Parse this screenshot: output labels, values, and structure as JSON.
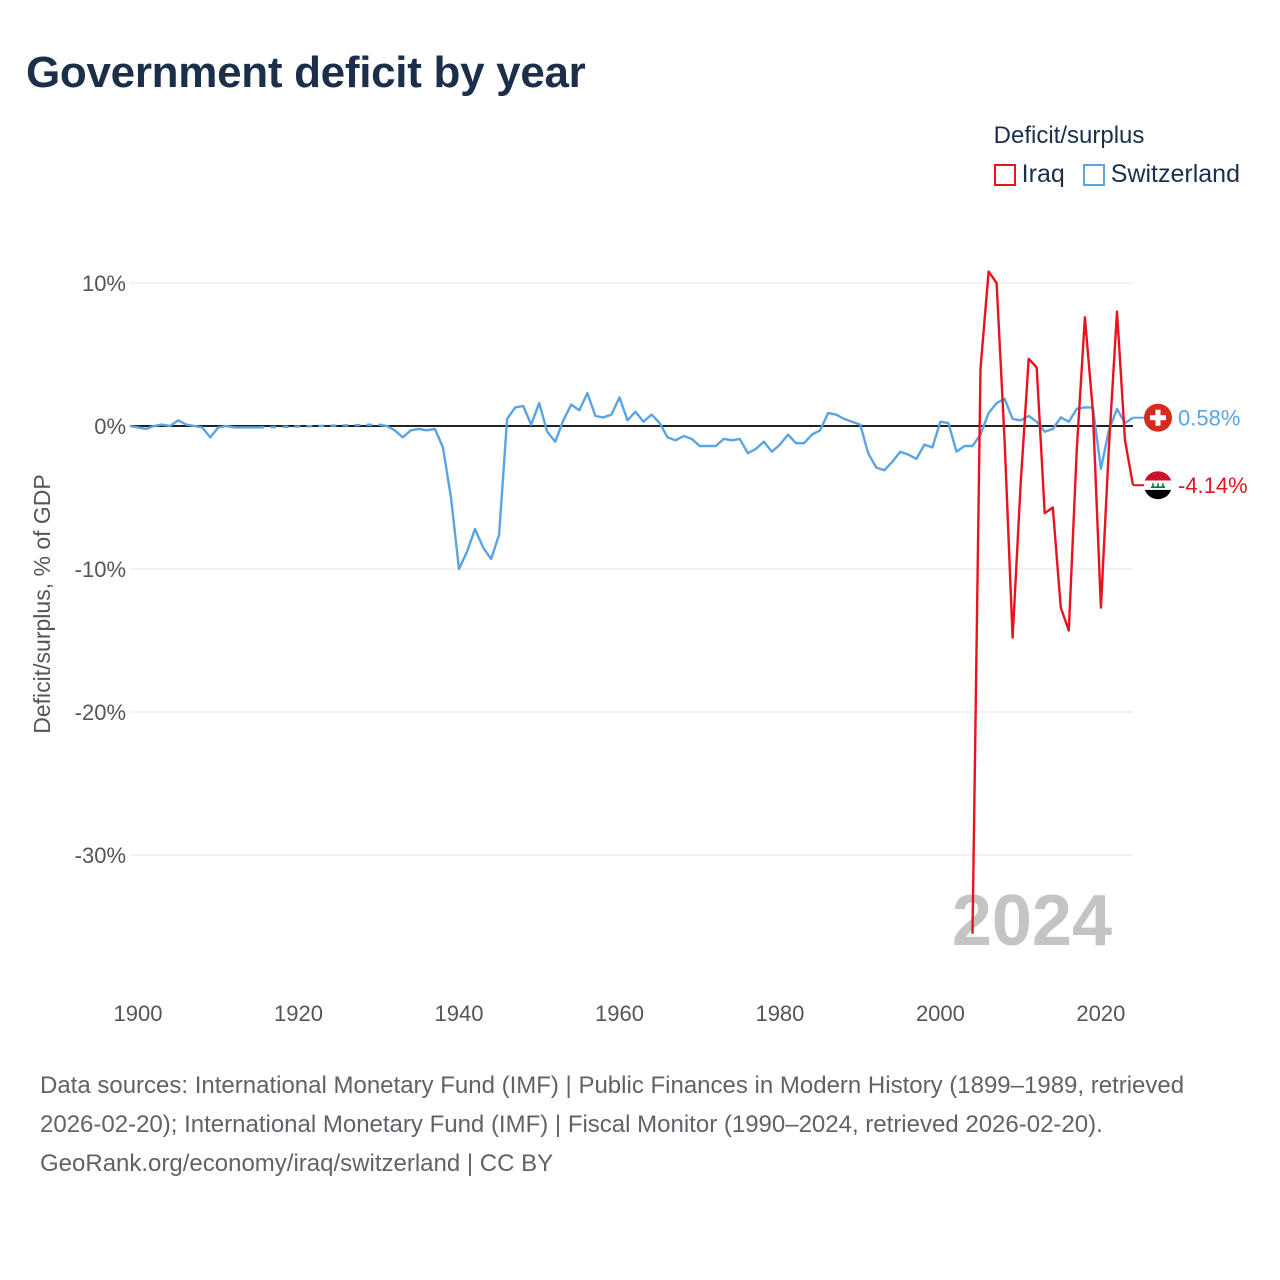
{
  "title": "Government deficit by year",
  "legend": {
    "title": "Deficit/surplus",
    "items": [
      {
        "label": "Iraq",
        "color": "#e8131e"
      },
      {
        "label": "Switzerland",
        "color": "#5ba4e3"
      }
    ]
  },
  "year_watermark": "2024",
  "footer": {
    "sources": "Data sources: International Monetary Fund (IMF) | Public Finances in Modern History (1899–1989, retrieved 2026-02-20); International Monetary Fund (IMF) | Fiscal Monitor (1990–2024, retrieved 2026-02-20).",
    "credit": "GeoRank.org/economy/iraq/switzerland | CC BY"
  },
  "chart_data": {
    "type": "line",
    "title": "Government deficit by year",
    "xlabel": "",
    "ylabel": "Deficit/surplus, % of GDP",
    "xlim": [
      1899,
      2024
    ],
    "ylim": [
      -37,
      11
    ],
    "xticks": [
      1900,
      1920,
      1940,
      1960,
      1980,
      2000,
      2020
    ],
    "xtick_labels": [
      "1900",
      "1920",
      "1940",
      "1960",
      "1980",
      "2000",
      "2020"
    ],
    "yticks": [
      10,
      0,
      -10,
      -20,
      -30
    ],
    "ytick_labels": [
      "10%",
      "0%",
      "-10%",
      "-20%",
      "-30%"
    ],
    "zero_line": true,
    "series": [
      {
        "name": "Switzerland",
        "color": "#5ba4e3",
        "end_label": "0.58%",
        "solid_segments": [
          {
            "x": [
              1899,
              1900,
              1901,
              1902,
              1903,
              1904,
              1905,
              1906,
              1907,
              1908,
              1909,
              1910,
              1911,
              1912,
              1913,
              1914,
              1915
            ],
            "y": [
              0.0,
              -0.1,
              -0.2,
              0.0,
              0.1,
              0.0,
              0.4,
              0.1,
              0.0,
              -0.1,
              -0.8,
              -0.1,
              0.0,
              -0.1,
              -0.1,
              -0.1,
              -0.1
            ]
          },
          {
            "x": [
              1930,
              1931,
              1932,
              1933,
              1934,
              1935,
              1936,
              1937,
              1938,
              1939,
              1940,
              1941,
              1942,
              1943,
              1944,
              1945,
              1946,
              1947,
              1948,
              1949,
              1950,
              1951,
              1952,
              1953,
              1954,
              1955,
              1956,
              1957,
              1958,
              1959,
              1960,
              1961,
              1962,
              1963,
              1964,
              1965,
              1966,
              1967,
              1968,
              1969,
              1970,
              1971,
              1972,
              1973,
              1974,
              1975,
              1976,
              1977,
              1978,
              1979,
              1980,
              1981,
              1982,
              1983,
              1984,
              1985,
              1986,
              1987,
              1988,
              1989,
              1990,
              1991,
              1992,
              1993,
              1994,
              1995,
              1996,
              1997,
              1998,
              1999,
              2000,
              2001,
              2002,
              2003,
              2004,
              2005,
              2006,
              2007,
              2008,
              2009,
              2010,
              2011,
              2012,
              2013,
              2014,
              2015,
              2016,
              2017,
              2018,
              2019,
              2020,
              2021,
              2022,
              2023,
              2024
            ],
            "y": [
              0.1,
              0.0,
              -0.3,
              -0.8,
              -0.3,
              -0.2,
              -0.3,
              -0.2,
              -1.5,
              -5.0,
              -10.0,
              -8.8,
              -7.2,
              -8.5,
              -9.3,
              -7.6,
              0.5,
              1.3,
              1.4,
              0.1,
              1.6,
              -0.4,
              -1.1,
              0.4,
              1.5,
              1.1,
              2.3,
              0.7,
              0.6,
              0.8,
              2.0,
              0.4,
              1.0,
              0.3,
              0.8,
              0.2,
              -0.8,
              -1.0,
              -0.7,
              -0.9,
              -1.4,
              -1.4,
              -1.4,
              -0.9,
              -1.0,
              -0.9,
              -1.9,
              -1.6,
              -1.1,
              -1.8,
              -1.3,
              -0.6,
              -1.2,
              -1.2,
              -0.6,
              -0.3,
              0.9,
              0.8,
              0.5,
              0.3,
              0.1,
              -1.9,
              -2.9,
              -3.1,
              -2.5,
              -1.8,
              -2.0,
              -2.3,
              -1.3,
              -1.5,
              0.3,
              0.2,
              -1.8,
              -1.4,
              -1.4,
              -0.6,
              0.9,
              1.6,
              1.9,
              0.5,
              0.4,
              0.7,
              0.3,
              -0.4,
              -0.2,
              0.6,
              0.3,
              1.2,
              1.3,
              1.3,
              -3.0,
              -0.3,
              1.2,
              0.2,
              0.58
            ]
          }
        ],
        "dashed_segment": {
          "x": [
            1915,
            1930
          ],
          "y": [
            -0.1,
            0.1
          ]
        }
      },
      {
        "name": "Iraq",
        "color": "#e8131e",
        "end_label": "-4.14%",
        "solid_segments": [
          {
            "x": [
              2004,
              2005,
              2006,
              2007,
              2008,
              2009,
              2010,
              2011,
              2012,
              2013,
              2014,
              2015,
              2016,
              2017,
              2018,
              2019,
              2020,
              2021,
              2022,
              2023,
              2024
            ],
            "y": [
              -35.5,
              4.0,
              10.8,
              10.0,
              -1.0,
              -14.8,
              -4.0,
              4.7,
              4.1,
              -6.1,
              -5.7,
              -12.7,
              -14.3,
              -1.6,
              7.6,
              1.0,
              -12.7,
              -1.5,
              8.0,
              -1.0,
              -4.14
            ]
          }
        ]
      }
    ]
  }
}
